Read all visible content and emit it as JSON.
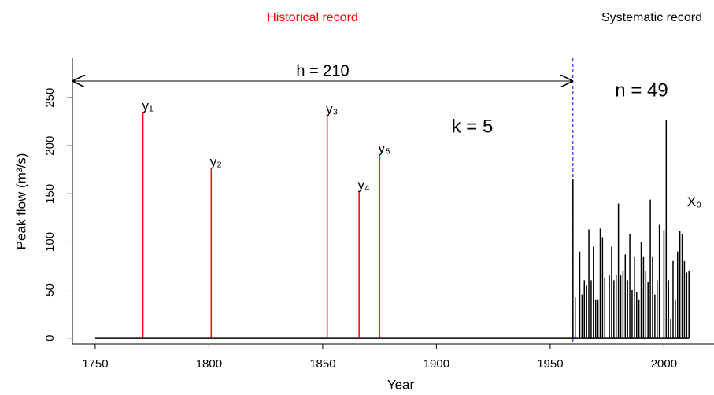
{
  "chart_data": {
    "type": "flood-record",
    "title_left": "Historical record",
    "title_right": "Systematic record",
    "x_label": "Year",
    "y_label": "Peak flow (m³/s)",
    "xlim": [
      1740,
      2022
    ],
    "ylim": [
      -6,
      291
    ],
    "xticks": [
      1750,
      1800,
      1850,
      1900,
      1950,
      2000
    ],
    "yticks": [
      0,
      50,
      100,
      150,
      200,
      250
    ],
    "record_span": [
      1750,
      2011
    ],
    "systematic_start": 1960,
    "threshold": {
      "value": 131,
      "label": "X₀",
      "color": "#ff0000"
    },
    "annotations": {
      "h": "h = 210",
      "n": "n = 49",
      "k": "k = 5"
    },
    "historical": {
      "color": "#ff0000",
      "labels": [
        "y₁",
        "y₂",
        "y₃",
        "y₄",
        "y₅"
      ],
      "x": [
        1771,
        1801,
        1852,
        1866,
        1875
      ],
      "values": [
        234,
        176,
        231,
        152,
        190
      ]
    },
    "systematic": {
      "color": "#000000",
      "x": [
        1960,
        1961,
        1963,
        1964,
        1965,
        1966,
        1967,
        1968,
        1969,
        1970,
        1971,
        1972,
        1973,
        1974,
        1976,
        1977,
        1978,
        1979,
        1980,
        1981,
        1982,
        1983,
        1984,
        1985,
        1986,
        1987,
        1988,
        1989,
        1990,
        1991,
        1992,
        1993,
        1994,
        1995,
        1996,
        1997,
        1998,
        2000,
        2001,
        2002,
        2003,
        2004,
        2005,
        2006,
        2007,
        2008,
        2009,
        2010,
        2011
      ],
      "values": [
        165,
        42,
        90,
        45,
        60,
        55,
        113,
        60,
        95,
        40,
        40,
        114,
        105,
        63,
        65,
        95,
        60,
        66,
        140,
        65,
        70,
        87,
        60,
        108,
        50,
        84,
        48,
        40,
        100,
        85,
        70,
        58,
        144,
        85,
        45,
        60,
        118,
        112,
        227,
        60,
        20,
        80,
        40,
        90,
        111,
        108,
        80,
        68,
        70
      ]
    }
  }
}
